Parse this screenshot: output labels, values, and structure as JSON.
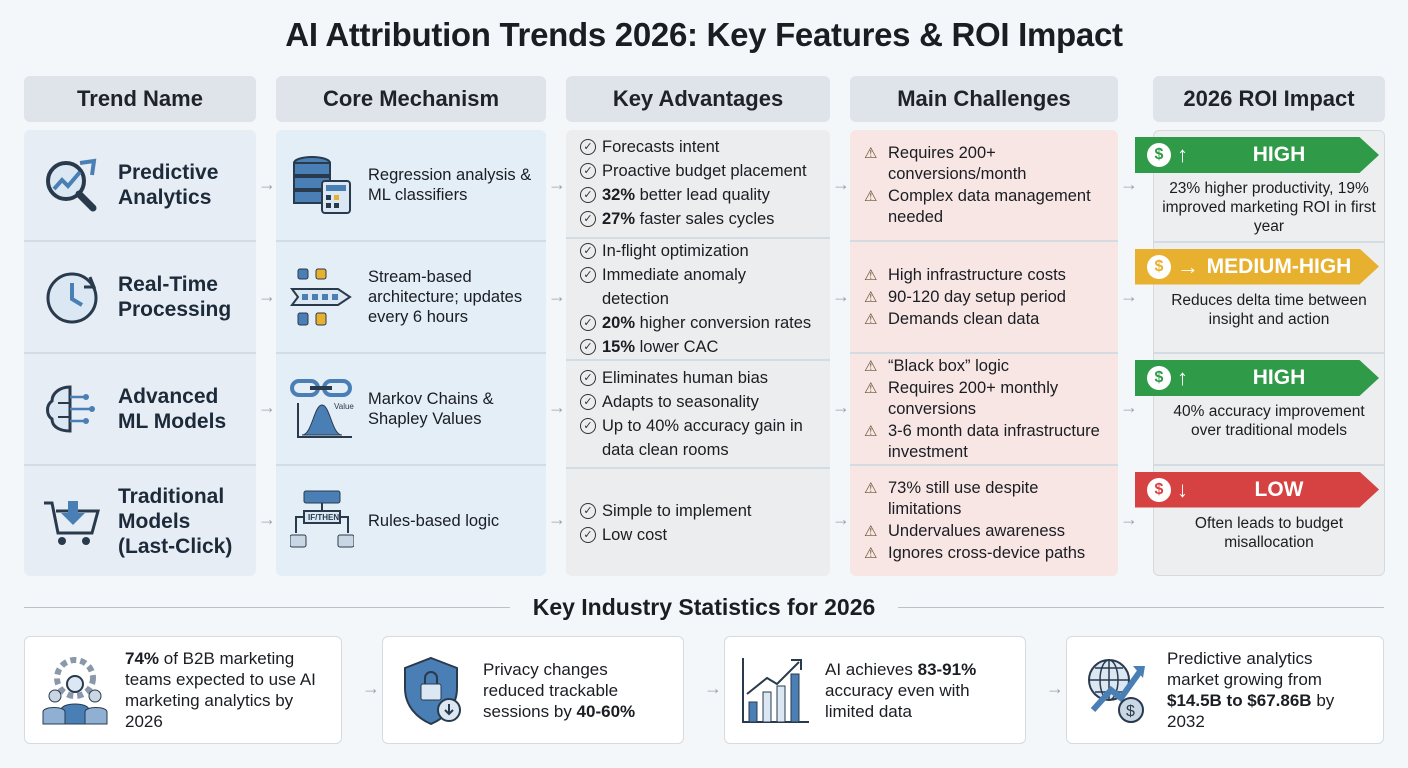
{
  "title": "AI Attribution Trends 2026: Key Features & ROI Impact",
  "headers": [
    "Trend Name",
    "Core Mechanism",
    "Key Advantages",
    "Main Challenges",
    "2026 ROI Impact"
  ],
  "rows": [
    {
      "name": "Predictive Analytics",
      "icon": "analytics-magnifier-icon",
      "mechanism": "Regression analysis & ML classifiers",
      "mech_icon": "database-calculator-icon",
      "advantages": [
        {
          "b": "",
          "t": "Forecasts intent"
        },
        {
          "b": "",
          "t": "Proactive budget placement"
        },
        {
          "b": "32%",
          "t": " better lead quality"
        },
        {
          "b": "27%",
          "t": " faster sales cycles"
        }
      ],
      "challenges": [
        "Requires 200+ conversions/month",
        "Complex data management needed"
      ],
      "roi": {
        "level": "HIGH",
        "arrow": "↑",
        "color": "#2f9a47",
        "desc": "23% higher productivity, 19% improved marketing ROI in first year"
      }
    },
    {
      "name": "Real-Time Processing",
      "icon": "clock-icon",
      "mechanism": "Stream-based architecture; updates every 6 hours",
      "mech_icon": "stream-pipeline-icon",
      "advantages": [
        {
          "b": "",
          "t": "In-flight optimization"
        },
        {
          "b": "",
          "t": "Immediate anomaly detection"
        },
        {
          "b": "20%",
          "t": " higher conversion rates"
        },
        {
          "b": "15%",
          "t": " lower CAC"
        }
      ],
      "challenges": [
        "High infrastructure costs",
        "90-120 day setup period",
        "Demands clean data"
      ],
      "roi": {
        "level": "MEDIUM-HIGH",
        "arrow": "→",
        "color": "#e8b02f",
        "desc": "Reduces delta time between insight and action"
      }
    },
    {
      "name": "Advanced ML Models",
      "icon": "brain-network-icon",
      "mechanism": "Markov Chains & Shapley Values",
      "mech_icon": "chain-distribution-icon",
      "advantages": [
        {
          "b": "",
          "t": "Eliminates human bias"
        },
        {
          "b": "",
          "t": "Adapts to seasonality"
        },
        {
          "b": "",
          "t": "Up to 40% accuracy gain in data clean rooms"
        }
      ],
      "challenges": [
        "“Black box” logic",
        "Requires 200+ monthly conversions",
        "3-6 month data infrastructure investment"
      ],
      "roi": {
        "level": "HIGH",
        "arrow": "↑",
        "color": "#2f9a47",
        "desc": "40% accuracy improvement over traditional models"
      }
    },
    {
      "name": "Traditional Models (Last-Click)",
      "icon": "cart-download-icon",
      "mechanism": "Rules-based logic",
      "mech_icon": "flowchart-icon",
      "mech_icon_label": "IF/THEN",
      "advantages": [
        {
          "b": "",
          "t": "Simple to implement"
        },
        {
          "b": "",
          "t": "Low cost"
        }
      ],
      "challenges": [
        "73% still use despite limitations",
        "Undervalues awareness",
        "Ignores cross-device paths"
      ],
      "roi": {
        "level": "LOW",
        "arrow": "↓",
        "color": "#d64141",
        "desc": "Often leads to budget misallocation"
      }
    }
  ],
  "stats_title": "Key Industry Statistics for 2026",
  "stats": [
    {
      "icon": "team-gear-icon",
      "pre": "",
      "b": "74%",
      "post": " of B2B marketing teams expected to use AI marketing analytics by 2026"
    },
    {
      "icon": "shield-lock-icon",
      "pre": "Privacy changes reduced trackable sessions by ",
      "b": "40-60%",
      "post": ""
    },
    {
      "icon": "bar-chart-growth-icon",
      "pre": "AI achieves ",
      "b": "83-91%",
      "post": " accuracy even with limited data"
    },
    {
      "icon": "globe-growth-icon",
      "pre": "Predictive analytics market growing from ",
      "b": "$14.5B to $67.86B",
      "post": " by 2032"
    }
  ],
  "colors": {
    "blue": "#4a7fb5",
    "high": "#2f9a47",
    "medium": "#e8b02f",
    "low": "#d64141"
  }
}
